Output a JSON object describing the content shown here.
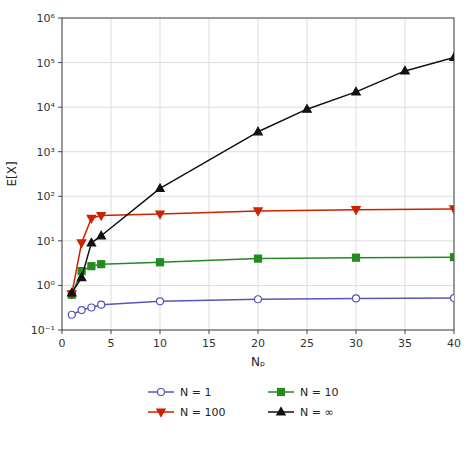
{
  "chart_data": {
    "type": "line",
    "xlabel": "Nₚ",
    "ylabel": "E[X]",
    "log": "y",
    "xlim": [
      0,
      40
    ],
    "ylim": [
      0.1,
      1000000.0
    ],
    "xticks": [
      0,
      5,
      10,
      15,
      20,
      25,
      30,
      35,
      40
    ],
    "yticks": [
      {
        "value": 0.1,
        "label": "10⁻¹"
      },
      {
        "value": 1,
        "label": "10⁰"
      },
      {
        "value": 10,
        "label": "10¹"
      },
      {
        "value": 100,
        "label": "10²"
      },
      {
        "value": 1000,
        "label": "10³"
      },
      {
        "value": 10000,
        "label": "10⁴"
      },
      {
        "value": 100000,
        "label": "10⁵"
      },
      {
        "value": 1000000,
        "label": "10⁶"
      }
    ],
    "grid": true,
    "legend": "bottom",
    "series": [
      {
        "name": "N = 1",
        "color": "#5555bb",
        "marker": "circle-open",
        "x": [
          1,
          2,
          3,
          4,
          10,
          20,
          30,
          40
        ],
        "values": [
          0.22,
          0.28,
          0.32,
          0.37,
          0.44,
          0.49,
          0.51,
          0.52
        ]
      },
      {
        "name": "N = 10",
        "color": "#228B22",
        "marker": "square",
        "x": [
          1,
          2,
          3,
          4,
          10,
          20,
          30,
          40
        ],
        "values": [
          0.62,
          2.1,
          2.7,
          3.0,
          3.3,
          4.0,
          4.2,
          4.3
        ]
      },
      {
        "name": "N = 100",
        "color": "#cc2200",
        "marker": "triangle-down",
        "x": [
          1,
          2,
          3,
          4,
          10,
          20,
          30,
          40
        ],
        "values": [
          0.65,
          9.0,
          32.0,
          37.0,
          40.0,
          47.0,
          50.0,
          52.0
        ]
      },
      {
        "name": "N = ∞",
        "color": "#111111",
        "marker": "triangle-up",
        "x": [
          1,
          2,
          3,
          4,
          10,
          20,
          25,
          30,
          35,
          40
        ],
        "values": [
          0.68,
          1.5,
          9.0,
          13.0,
          150.0,
          2800.0,
          9000.0,
          22000.0,
          65000.0,
          130000.0
        ]
      }
    ]
  }
}
